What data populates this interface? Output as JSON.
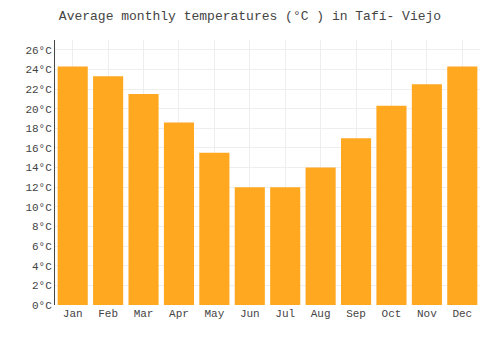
{
  "chart_data": {
    "type": "bar",
    "title": "Average monthly temperatures (°C ) in Tafí- Viejo",
    "categories": [
      "Jan",
      "Feb",
      "Mar",
      "Apr",
      "May",
      "Jun",
      "Jul",
      "Aug",
      "Sep",
      "Oct",
      "Nov",
      "Dec"
    ],
    "values": [
      24.3,
      23.3,
      21.5,
      18.6,
      15.5,
      12.0,
      12.0,
      14.0,
      17.0,
      20.3,
      22.5,
      24.3
    ],
    "color": "#FFA820",
    "ylim": [
      0,
      27
    ],
    "yticks": [
      {
        "value": 0,
        "label": "0°C"
      },
      {
        "value": 2,
        "label": "2°C"
      },
      {
        "value": 4,
        "label": "4°C"
      },
      {
        "value": 6,
        "label": "6°C"
      },
      {
        "value": 8,
        "label": "8°C"
      },
      {
        "value": 10,
        "label": "10°C"
      },
      {
        "value": 12,
        "label": "12°C"
      },
      {
        "value": 14,
        "label": "14°C"
      },
      {
        "value": 16,
        "label": "16°C"
      },
      {
        "value": 18,
        "label": "18°C"
      },
      {
        "value": 20,
        "label": "20°C"
      },
      {
        "value": 22,
        "label": "22°C"
      },
      {
        "value": 24,
        "label": "24°C"
      },
      {
        "value": 26,
        "label": "26°C"
      }
    ],
    "grid": true
  }
}
